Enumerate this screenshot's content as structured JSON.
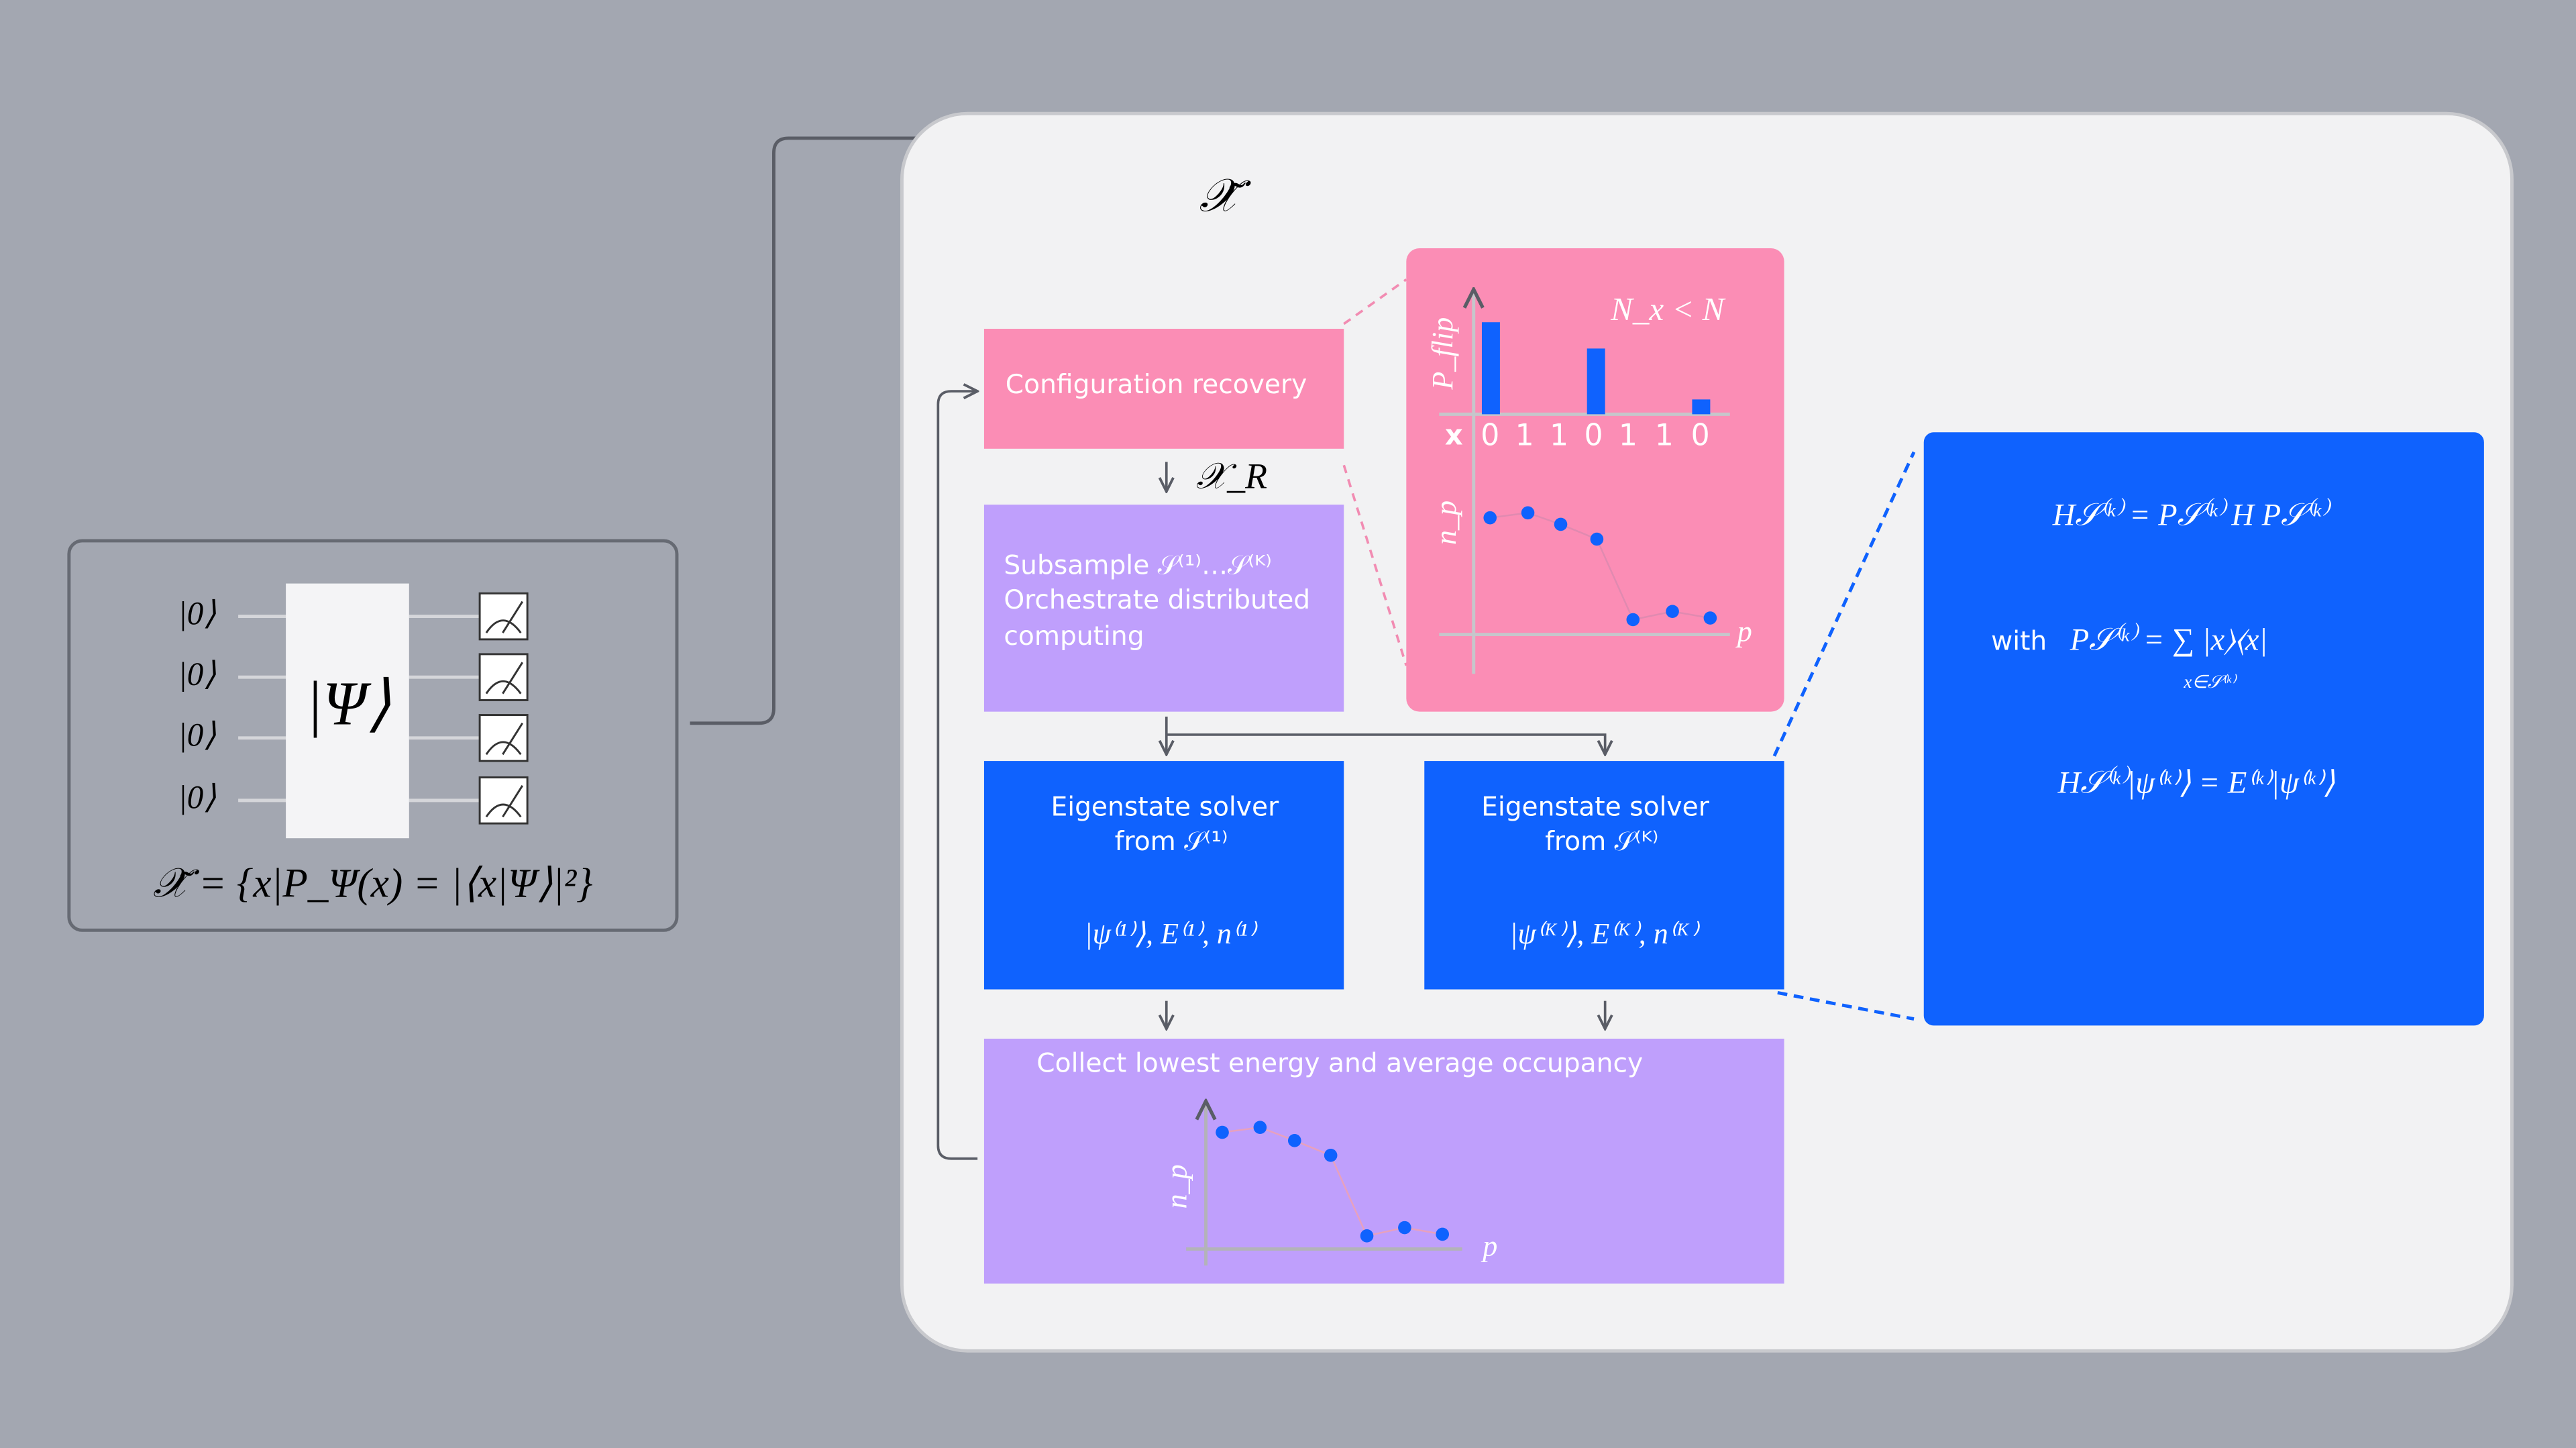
{
  "circuit": {
    "inputs": [
      "|0⟩",
      "|0⟩",
      "|0⟩",
      "|0⟩"
    ],
    "state": "|Ψ⟩",
    "formula": "𝒳̃ = {x|P_Ψ(x) = |⟨x|Ψ⟩|²}"
  },
  "input_label": "𝒳̃",
  "recovery": {
    "title": "Configuration recovery",
    "output": "𝒳_R"
  },
  "flip_panel": {
    "y_label": "P_flip",
    "condition": "N_x < N",
    "x_label": "x",
    "bits": [
      "0",
      "1",
      "1",
      "0",
      "1",
      "1",
      "0"
    ],
    "occupancy_y_label": "n_p",
    "occupancy_x_label": "p"
  },
  "subsample": {
    "lines": [
      "Subsample 𝒮⁽¹⁾…𝒮⁽ᴷ⁾",
      "Orchestrate distributed",
      "computing"
    ]
  },
  "solvers": [
    {
      "title": "Eigenstate solver",
      "from": "from 𝒮⁽¹⁾",
      "result": "|ψ⁽¹⁾⟩, E⁽¹⁾, n⁽¹⁾"
    },
    {
      "title": "Eigenstate solver",
      "from": "from 𝒮⁽ᴷ⁾",
      "result": "|ψ⁽ᴷ⁾⟩, E⁽ᴷ⁾, n⁽ᴷ⁾"
    }
  ],
  "collect": {
    "title": "Collect lowest energy and average occupancy",
    "y_label": "n_p",
    "x_label": "p"
  },
  "projection": {
    "hamiltonian": "H𝒮⁽ᵏ⁾ = P𝒮⁽ᵏ⁾ H P𝒮⁽ᵏ⁾",
    "with": "with",
    "projector": "P𝒮⁽ᵏ⁾ = ∑ |x⟩⟨x|",
    "sum_range": "x∈𝒮⁽ᵏ⁾",
    "eigen": "H𝒮⁽ᵏ⁾|ψ⁽ᵏ⁾⟩ = E⁽ᵏ⁾|ψ⁽ᵏ⁾⟩"
  }
}
